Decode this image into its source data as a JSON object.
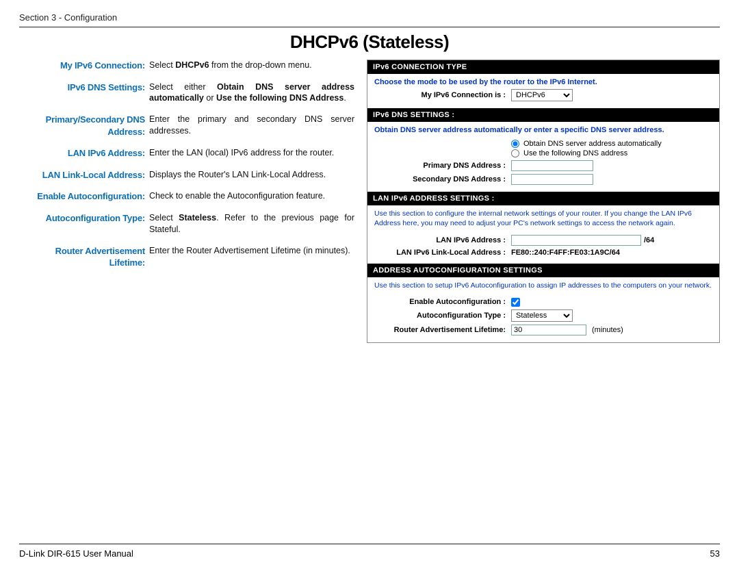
{
  "header": {
    "section": "Section 3 - Configuration"
  },
  "title": "DHCPv6 (Stateless)",
  "definitions": [
    {
      "term": "My IPv6 Connection:",
      "desc_html": "Select <b>DHCPv6</b> from the drop-down menu."
    },
    {
      "term": "IPv6 DNS Settings:",
      "desc_html": "Select either <b>Obtain DNS server address automatically</b> or <b>Use the following DNS Address</b>."
    },
    {
      "term": "Primary/Secondary DNS Address:",
      "desc_html": "Enter the primary and secondary DNS server addresses."
    },
    {
      "term": "LAN IPv6 Address:",
      "desc_html": "Enter the LAN (local) IPv6 address for the router."
    },
    {
      "term": "LAN Link-Local Address:",
      "desc_html": "Displays the Router's LAN Link-Local Address."
    },
    {
      "term": "Enable Autoconfiguration:",
      "desc_html": "Check to enable the Autoconfiguration feature."
    },
    {
      "term": "Autoconfiguration Type:",
      "desc_html": "Select <b>Stateless</b>. Refer to the previous page for Stateful."
    },
    {
      "term": "Router Advertisement Lifetime:",
      "desc_html": "Enter the Router Advertisement Lifetime (in minutes)."
    }
  ],
  "panel": {
    "s1": {
      "hdr": "IPv6 CONNECTION TYPE",
      "desc": "Choose the mode to be used by the router to the IPv6 Internet.",
      "label": "My IPv6 Connection is :",
      "select_value": "DHCPv6"
    },
    "s2": {
      "hdr": "IPv6 DNS SETTINGS :",
      "desc": "Obtain DNS server address automatically or enter a specific DNS server address.",
      "radio1": "Obtain DNS server address automatically",
      "radio2": "Use the following DNS address",
      "primary_label": "Primary DNS Address :",
      "secondary_label": "Secondary DNS Address :",
      "primary_value": "",
      "secondary_value": ""
    },
    "s3": {
      "hdr": "LAN IPv6 ADDRESS SETTINGS :",
      "desc": "Use this section to configure the internal network settings of your router. If you change the LAN IPv6 Address here, you may need to adjust your PC's network settings to access the network again.",
      "addr_label": "LAN IPv6 Address :",
      "addr_value": "",
      "addr_suffix": "/64",
      "ll_label": "LAN IPv6 Link-Local Address :",
      "ll_value": "FE80::240:F4FF:FE03:1A9C/64"
    },
    "s4": {
      "hdr": "ADDRESS AUTOCONFIGURATION SETTINGS",
      "desc": "Use this section to setup IPv6 Autoconfiguration to assign IP addresses to the computers on your network.",
      "enable_label": "Enable Autoconfiguration :",
      "type_label": "Autoconfiguration Type :",
      "type_value": "Stateless",
      "lifetime_label": "Router Advertisement Lifetime:",
      "lifetime_value": "30",
      "lifetime_unit": "(minutes)"
    }
  },
  "footer": {
    "manual": "D-Link DIR-615 User Manual",
    "page": "53"
  }
}
